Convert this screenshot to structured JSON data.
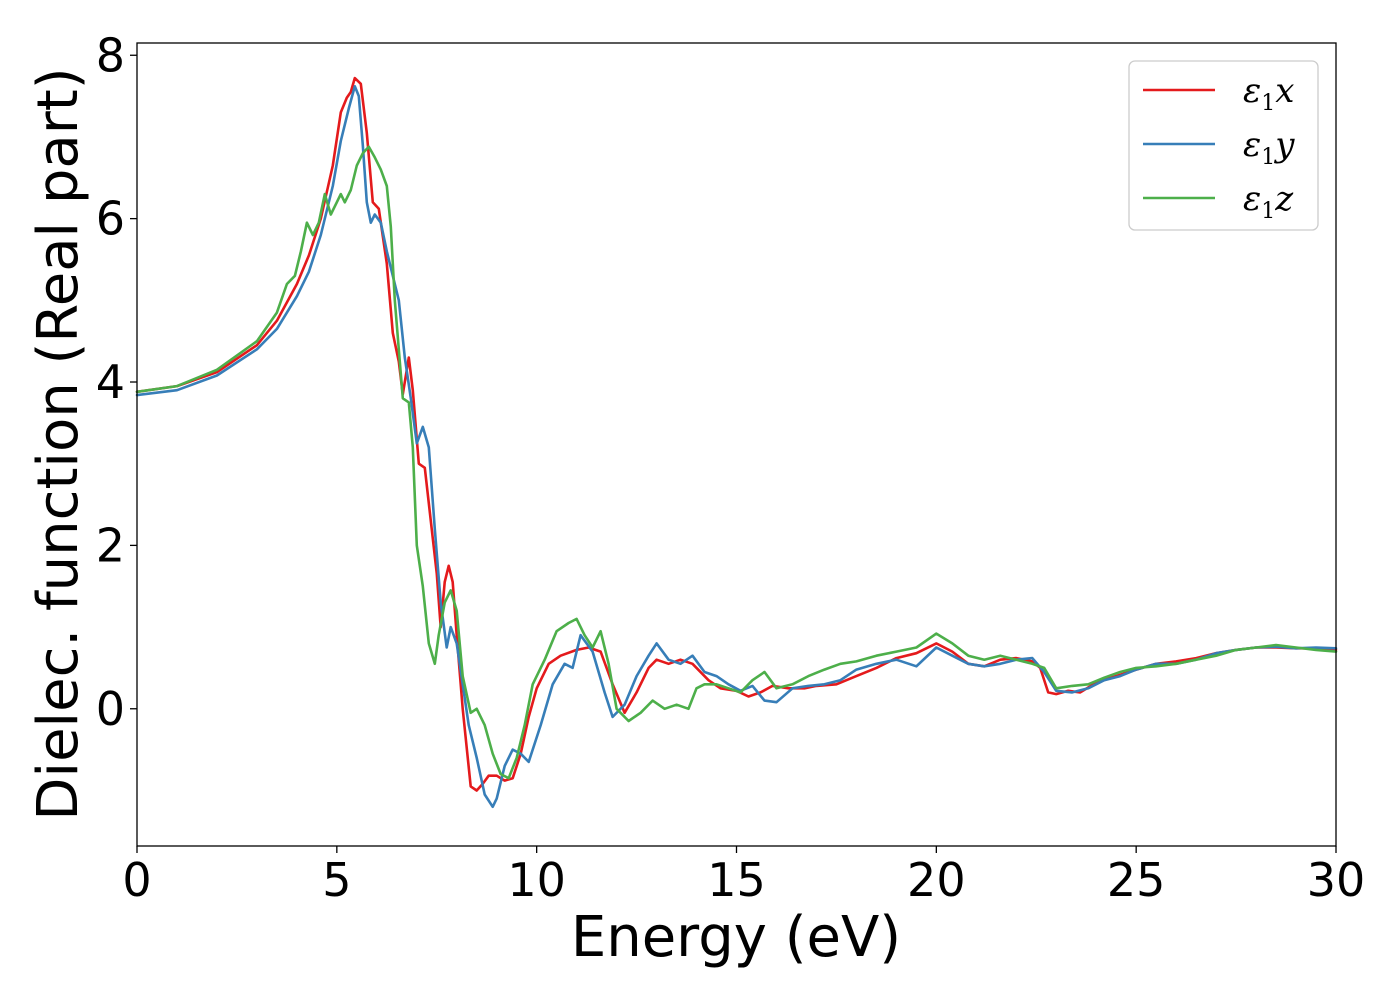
{
  "chart_data": {
    "type": "line",
    "xlabel": "Energy (eV)",
    "ylabel": "Dielec. function (Real part)",
    "xlim": [
      0,
      30
    ],
    "ylim": [
      -1.68,
      8.15
    ],
    "xticks": [
      0,
      5,
      10,
      15,
      20,
      25,
      30
    ],
    "yticks": [
      0,
      2,
      4,
      6,
      8
    ],
    "grid": false,
    "legend_position": "top-right",
    "colors": {
      "red": "#e41a1c",
      "blue": "#377eb8",
      "green": "#4daf4a"
    },
    "series": [
      {
        "name": "ε1x",
        "legend_base": "ε",
        "legend_sub": "1",
        "legend_var": "x",
        "color": "#e41a1c",
        "x": [
          0,
          1,
          2,
          3,
          3.5,
          4,
          4.3,
          4.6,
          4.9,
          5.1,
          5.25,
          5.35,
          5.45,
          5.6,
          5.75,
          5.9,
          6.05,
          6.25,
          6.4,
          6.55,
          6.65,
          6.8,
          6.9,
          7.05,
          7.2,
          7.35,
          7.5,
          7.6,
          7.7,
          7.8,
          7.9,
          8.0,
          8.15,
          8.35,
          8.5,
          8.65,
          8.8,
          9.0,
          9.2,
          9.4,
          9.6,
          9.8,
          10.0,
          10.3,
          10.6,
          11.0,
          11.3,
          11.6,
          11.9,
          12.2,
          12.5,
          12.8,
          13.0,
          13.3,
          13.6,
          13.9,
          14.3,
          14.6,
          15.0,
          15.3,
          15.6,
          15.9,
          16.3,
          16.7,
          17.0,
          17.5,
          18.0,
          18.5,
          19.0,
          19.5,
          20.0,
          20.4,
          20.8,
          21.2,
          21.6,
          22.0,
          22.4,
          22.6,
          22.8,
          23.0,
          23.3,
          23.6,
          24.0,
          24.5,
          25.0,
          25.5,
          26.0,
          26.5,
          27.0,
          27.5,
          28.0,
          28.5,
          29.0,
          29.5,
          30.0
        ],
        "y": [
          3.88,
          3.95,
          4.12,
          4.45,
          4.75,
          5.2,
          5.55,
          6.0,
          6.65,
          7.3,
          7.48,
          7.55,
          7.72,
          7.65,
          7.05,
          6.2,
          6.12,
          5.45,
          4.6,
          4.25,
          3.85,
          4.3,
          3.9,
          3.0,
          2.95,
          2.3,
          1.65,
          1.0,
          1.55,
          1.75,
          1.55,
          0.9,
          0.0,
          -0.95,
          -1.0,
          -0.92,
          -0.82,
          -0.82,
          -0.88,
          -0.85,
          -0.55,
          -0.1,
          0.25,
          0.55,
          0.65,
          0.72,
          0.75,
          0.7,
          0.3,
          -0.05,
          0.2,
          0.5,
          0.6,
          0.55,
          0.6,
          0.55,
          0.35,
          0.25,
          0.22,
          0.15,
          0.2,
          0.28,
          0.25,
          0.25,
          0.28,
          0.3,
          0.4,
          0.5,
          0.62,
          0.68,
          0.8,
          0.7,
          0.55,
          0.52,
          0.6,
          0.62,
          0.58,
          0.5,
          0.2,
          0.18,
          0.22,
          0.2,
          0.32,
          0.4,
          0.48,
          0.55,
          0.58,
          0.62,
          0.68,
          0.72,
          0.75,
          0.75,
          0.74,
          0.74,
          0.72
        ]
      },
      {
        "name": "ε1y",
        "legend_base": "ε",
        "legend_sub": "1",
        "legend_var": "y",
        "color": "#377eb8",
        "x": [
          0,
          1,
          2,
          3,
          3.5,
          4,
          4.3,
          4.6,
          4.9,
          5.1,
          5.3,
          5.45,
          5.55,
          5.65,
          5.75,
          5.85,
          5.95,
          6.1,
          6.25,
          6.4,
          6.55,
          6.7,
          6.85,
          7.0,
          7.15,
          7.3,
          7.45,
          7.6,
          7.75,
          7.85,
          8.0,
          8.15,
          8.3,
          8.5,
          8.7,
          8.9,
          9.0,
          9.2,
          9.4,
          9.6,
          9.8,
          10.1,
          10.4,
          10.7,
          10.9,
          11.1,
          11.4,
          11.7,
          11.9,
          12.2,
          12.5,
          12.8,
          13.0,
          13.3,
          13.6,
          13.9,
          14.2,
          14.5,
          14.8,
          15.1,
          15.4,
          15.7,
          16.0,
          16.4,
          16.8,
          17.2,
          17.6,
          18.0,
          18.5,
          19.0,
          19.5,
          20.0,
          20.4,
          20.8,
          21.2,
          21.6,
          22.0,
          22.4,
          22.7,
          23.0,
          23.4,
          23.8,
          24.2,
          24.6,
          25.0,
          25.5,
          26.0,
          26.5,
          27.0,
          27.5,
          28.0,
          28.5,
          29.0,
          29.5,
          30.0
        ],
        "y": [
          3.84,
          3.9,
          4.08,
          4.4,
          4.65,
          5.05,
          5.35,
          5.8,
          6.4,
          6.95,
          7.35,
          7.62,
          7.5,
          6.9,
          6.2,
          5.95,
          6.05,
          5.95,
          5.6,
          5.3,
          5.0,
          4.3,
          3.8,
          3.25,
          3.45,
          3.2,
          2.2,
          1.3,
          0.75,
          1.0,
          0.8,
          0.3,
          -0.2,
          -0.6,
          -1.05,
          -1.2,
          -1.1,
          -0.7,
          -0.5,
          -0.55,
          -0.65,
          -0.2,
          0.3,
          0.55,
          0.5,
          0.9,
          0.7,
          0.2,
          -0.1,
          0.05,
          0.4,
          0.65,
          0.8,
          0.6,
          0.55,
          0.65,
          0.45,
          0.4,
          0.3,
          0.22,
          0.28,
          0.1,
          0.08,
          0.25,
          0.28,
          0.3,
          0.35,
          0.48,
          0.55,
          0.6,
          0.52,
          0.75,
          0.65,
          0.55,
          0.52,
          0.55,
          0.6,
          0.62,
          0.45,
          0.22,
          0.2,
          0.25,
          0.35,
          0.4,
          0.48,
          0.55,
          0.55,
          0.6,
          0.68,
          0.72,
          0.75,
          0.76,
          0.74,
          0.75,
          0.74
        ]
      },
      {
        "name": "ε1z",
        "legend_base": "ε",
        "legend_sub": "1",
        "legend_var": "z",
        "color": "#4daf4a",
        "x": [
          0,
          1,
          2,
          3,
          3.5,
          3.75,
          3.95,
          4.1,
          4.25,
          4.4,
          4.55,
          4.7,
          4.85,
          5.0,
          5.1,
          5.2,
          5.35,
          5.5,
          5.65,
          5.8,
          5.95,
          6.1,
          6.25,
          6.35,
          6.45,
          6.55,
          6.65,
          6.8,
          6.9,
          7.0,
          7.15,
          7.3,
          7.45,
          7.55,
          7.7,
          7.85,
          8.0,
          8.15,
          8.35,
          8.5,
          8.7,
          8.9,
          9.1,
          9.3,
          9.5,
          9.7,
          9.9,
          10.2,
          10.5,
          10.8,
          11.0,
          11.2,
          11.4,
          11.6,
          11.8,
          12.0,
          12.3,
          12.6,
          12.9,
          13.2,
          13.5,
          13.8,
          14.0,
          14.2,
          14.5,
          14.8,
          15.1,
          15.4,
          15.7,
          16.0,
          16.4,
          16.8,
          17.2,
          17.6,
          18.0,
          18.5,
          19.0,
          19.5,
          20.0,
          20.4,
          20.8,
          21.2,
          21.6,
          22.0,
          22.4,
          22.7,
          23.0,
          23.4,
          23.8,
          24.2,
          24.6,
          25.0,
          25.5,
          26.0,
          26.5,
          27.0,
          27.5,
          28.0,
          28.5,
          29.0,
          29.5,
          30.0
        ],
        "y": [
          3.88,
          3.95,
          4.15,
          4.5,
          4.85,
          5.2,
          5.3,
          5.6,
          5.95,
          5.8,
          5.95,
          6.3,
          6.05,
          6.2,
          6.3,
          6.2,
          6.35,
          6.65,
          6.8,
          6.88,
          6.75,
          6.6,
          6.4,
          5.9,
          5.0,
          4.4,
          3.8,
          3.75,
          3.2,
          2.0,
          1.5,
          0.8,
          0.55,
          0.9,
          1.3,
          1.45,
          1.2,
          0.4,
          -0.05,
          0.0,
          -0.2,
          -0.55,
          -0.8,
          -0.85,
          -0.6,
          -0.2,
          0.3,
          0.6,
          0.95,
          1.05,
          1.1,
          0.9,
          0.75,
          0.95,
          0.55,
          0.0,
          -0.15,
          -0.05,
          0.1,
          0.0,
          0.05,
          0.0,
          0.25,
          0.3,
          0.3,
          0.25,
          0.2,
          0.35,
          0.45,
          0.25,
          0.3,
          0.4,
          0.48,
          0.55,
          0.58,
          0.65,
          0.7,
          0.75,
          0.92,
          0.8,
          0.65,
          0.6,
          0.65,
          0.6,
          0.55,
          0.5,
          0.25,
          0.28,
          0.3,
          0.38,
          0.45,
          0.5,
          0.52,
          0.55,
          0.6,
          0.65,
          0.72,
          0.75,
          0.78,
          0.75,
          0.72,
          0.7
        ]
      }
    ]
  }
}
